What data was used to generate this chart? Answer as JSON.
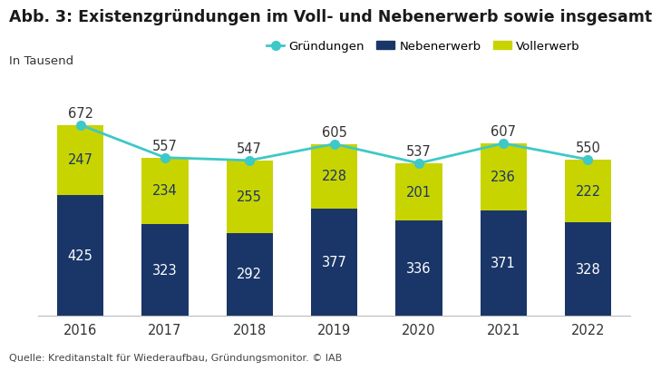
{
  "title": "Abb. 3: Existenzgründungen im Voll- und Nebenerwerb sowie insgesamt",
  "subtitle": "In Tausend",
  "source": "Quelle: Kreditanstalt für Wiederaufbau, Gründungsmonitor. © IAB",
  "years": [
    2016,
    2017,
    2018,
    2019,
    2020,
    2021,
    2022
  ],
  "nebenerwerb": [
    425,
    323,
    292,
    377,
    336,
    371,
    328
  ],
  "vollerwerb": [
    247,
    234,
    255,
    228,
    201,
    236,
    222
  ],
  "gruendungen": [
    672,
    557,
    547,
    605,
    537,
    607,
    550
  ],
  "color_nebenerwerb": "#1a3668",
  "color_vollerwerb": "#c8d400",
  "color_gruendungen": "#3ec8c8",
  "color_background": "#ffffff",
  "bar_width": 0.55,
  "ylim": [
    0,
    730
  ],
  "legend_labels": [
    "Gründungen",
    "Nebenerwerb",
    "Vollerwerb"
  ],
  "figsize": [
    7.1,
    4.08
  ],
  "dpi": 100
}
